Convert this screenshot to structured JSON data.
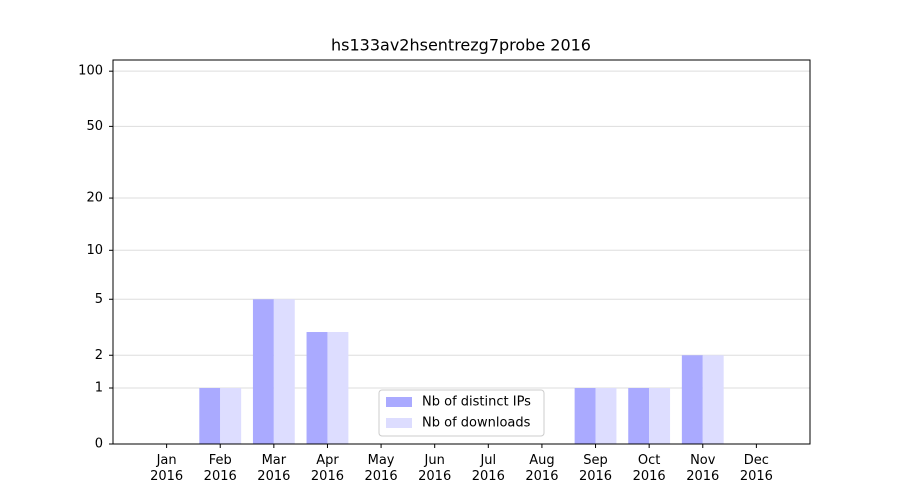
{
  "chart_data": {
    "type": "bar",
    "title": "hs133av2hsentrezg7probe 2016",
    "categories": [
      "Jan 2016",
      "Feb 2016",
      "Mar 2016",
      "Apr 2016",
      "May 2016",
      "Jun 2016",
      "Jul 2016",
      "Aug 2016",
      "Sep 2016",
      "Oct 2016",
      "Nov 2016",
      "Dec 2016"
    ],
    "series": [
      {
        "name": "Nb of distinct IPs",
        "color": "#aaaaff",
        "values": [
          0,
          1,
          5,
          3,
          0,
          0,
          0,
          0,
          1,
          1,
          2,
          0
        ]
      },
      {
        "name": "Nb of downloads",
        "color": "#ddddff",
        "values": [
          0,
          1,
          5,
          3,
          0,
          0,
          0,
          0,
          1,
          1,
          2,
          0
        ]
      }
    ],
    "yscale": "symlog",
    "ylim": [
      0,
      115
    ],
    "yticks": [
      0,
      1,
      2,
      5,
      10,
      20,
      50,
      100
    ],
    "grid": true,
    "legend": "lower center"
  }
}
